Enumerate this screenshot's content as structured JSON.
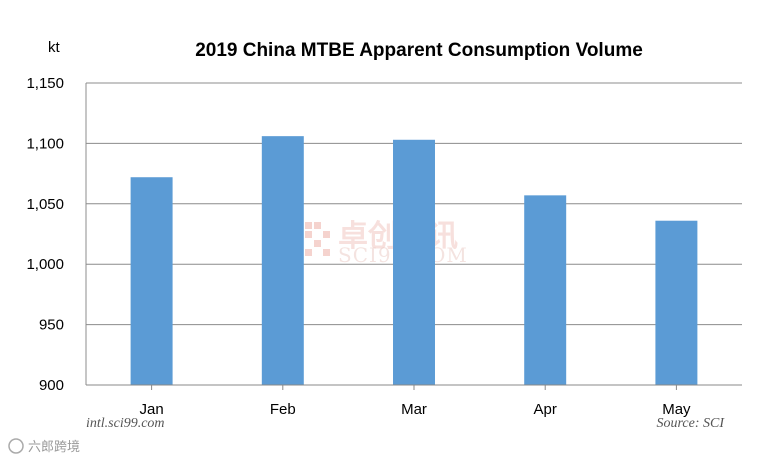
{
  "chart_data": {
    "type": "bar",
    "title": "2019 China MTBE Apparent Consumption Volume",
    "ylabel": "kt",
    "xlabel": "",
    "categories": [
      "Jan",
      "Feb",
      "Mar",
      "Apr",
      "May"
    ],
    "values": [
      1072,
      1106,
      1103,
      1057,
      1036
    ],
    "ylim": [
      900,
      1150
    ],
    "yticks": [
      900,
      950,
      1000,
      1050,
      1100,
      1150
    ],
    "ytick_labels": [
      "900",
      "950",
      "1,000",
      "1,050",
      "1,100",
      "1,150"
    ],
    "grid": true,
    "bar_color": "#5b9bd5"
  },
  "footer": {
    "left_credit": "intl.sci99.com",
    "right_credit": "Source: SCI"
  },
  "watermark": {
    "cn": "卓创资讯",
    "en": "SCI99.COM",
    "corner": "六郎跨境"
  }
}
